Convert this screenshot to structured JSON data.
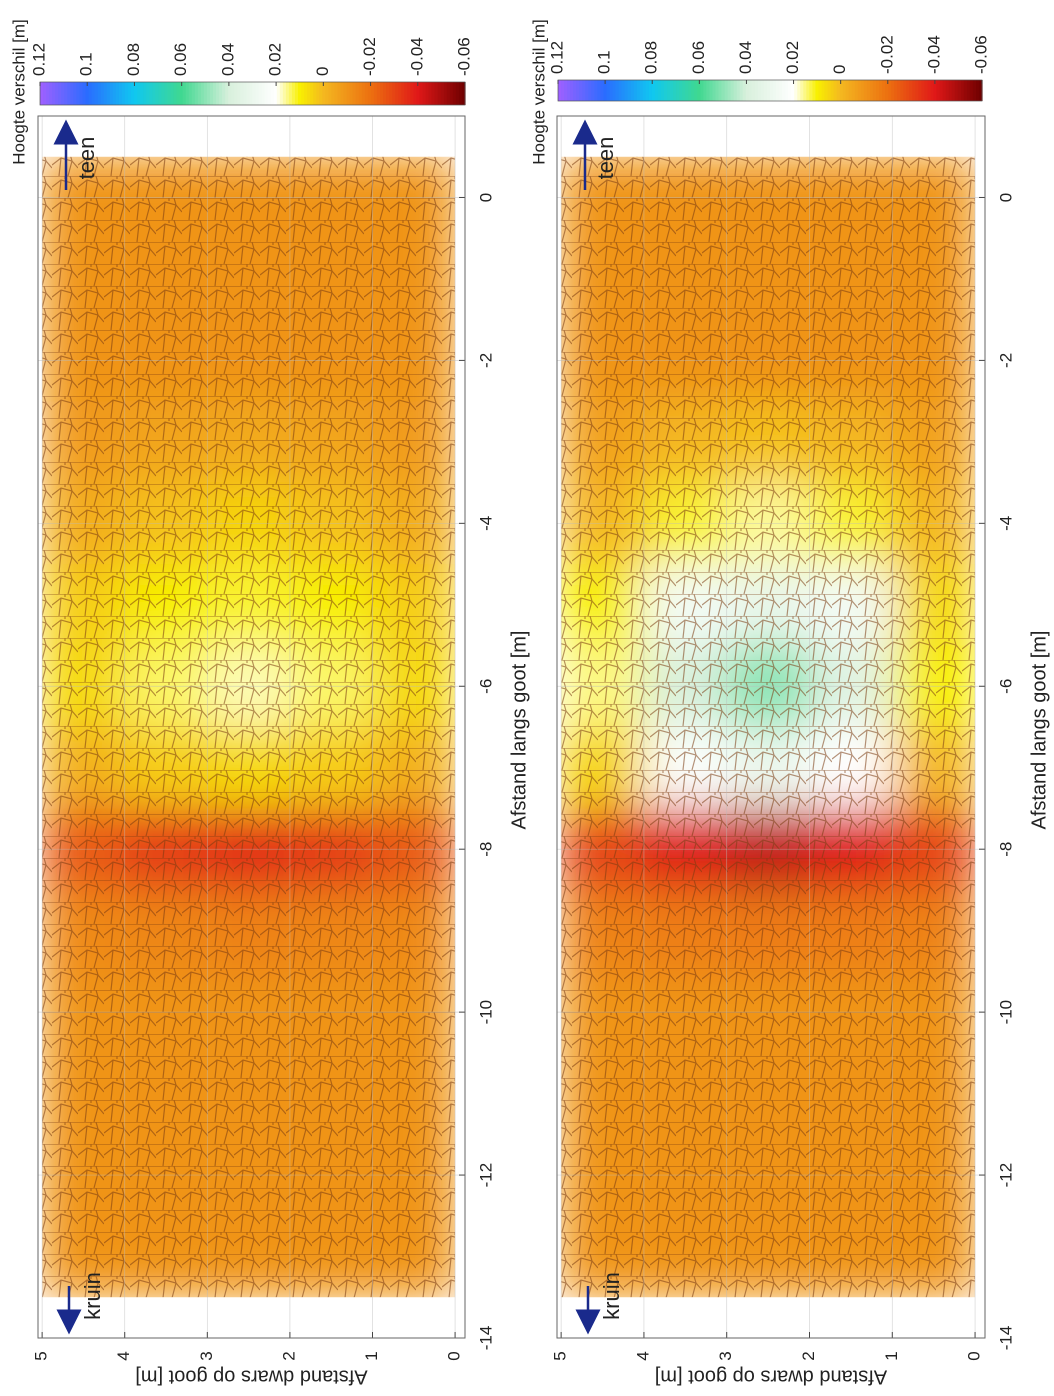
{
  "chart_data": [
    {
      "type": "heatmap",
      "x_label": "Afstand langs goot [m]",
      "y_label": "Afstand dwars op goot [m]",
      "x": [
        0,
        -1,
        -2,
        -3,
        -4,
        -5,
        -6,
        -7,
        -8,
        -9,
        -10,
        -11,
        -12,
        -13
      ],
      "y": [
        0.5,
        1.5,
        2.5,
        3.5,
        4.5
      ],
      "values": [
        [
          -0.01,
          -0.01,
          -0.01,
          -0.01,
          -0.01
        ],
        [
          -0.01,
          -0.01,
          -0.01,
          -0.01,
          -0.01
        ],
        [
          -0.01,
          -0.01,
          -0.01,
          -0.01,
          -0.01
        ],
        [
          -0.008,
          -0.005,
          -0.004,
          -0.005,
          -0.008
        ],
        [
          -0.003,
          0.002,
          0.005,
          0.002,
          -0.003
        ],
        [
          0.004,
          0.01,
          0.012,
          0.01,
          0.004
        ],
        [
          0.006,
          0.014,
          0.017,
          0.014,
          0.006
        ],
        [
          -0.002,
          0.004,
          0.006,
          0.004,
          -0.002
        ],
        [
          -0.025,
          -0.032,
          -0.035,
          -0.032,
          -0.025
        ],
        [
          -0.013,
          -0.014,
          -0.015,
          -0.014,
          -0.013
        ],
        [
          -0.01,
          -0.01,
          -0.01,
          -0.01,
          -0.01
        ],
        [
          -0.01,
          -0.01,
          -0.01,
          -0.01,
          -0.01
        ],
        [
          -0.01,
          -0.01,
          -0.01,
          -0.01,
          -0.01
        ],
        [
          -0.01,
          -0.01,
          -0.01,
          -0.01,
          -0.01
        ]
      ],
      "xlim": [
        1,
        -14
      ],
      "xticks": [
        0,
        -2,
        -4,
        -6,
        -8,
        -10,
        -12,
        -14
      ],
      "ylim": [
        -0.12,
        5.05
      ],
      "yticks": [
        0,
        1,
        2,
        3,
        4,
        5
      ],
      "grid": true,
      "colorbar": {
        "title": "Hoogte verschil [m]",
        "clim": [
          0.12,
          -0.06
        ],
        "ticks": [
          0.12,
          0.1,
          0.08,
          0.06,
          0.04,
          0.02,
          0,
          -0.02,
          -0.04,
          -0.06
        ],
        "colormap": [
          {
            "value": 0.12,
            "color": "#a060ff"
          },
          {
            "value": 0.1,
            "color": "#2a6cff"
          },
          {
            "value": 0.08,
            "color": "#10c8f0"
          },
          {
            "value": 0.06,
            "color": "#40d890"
          },
          {
            "value": 0.04,
            "color": "#d8f0dc"
          },
          {
            "value": 0.02,
            "color": "#ffffff"
          },
          {
            "value": 0.01,
            "color": "#f8f000"
          },
          {
            "value": 0,
            "color": "#f4b820"
          },
          {
            "value": -0.02,
            "color": "#ec7010"
          },
          {
            "value": -0.04,
            "color": "#e01818"
          },
          {
            "value": -0.06,
            "color": "#6e0000"
          }
        ]
      },
      "annotations": [
        "teen",
        "kruin"
      ]
    },
    {
      "type": "heatmap",
      "x_label": "Afstand langs goot [m]",
      "y_label": "Afstand dwars op goot [m]",
      "x": [
        0,
        -1,
        -2,
        -3,
        -4,
        -5,
        -6,
        -7,
        -8,
        -9,
        -10,
        -11,
        -12,
        -13
      ],
      "y": [
        0.5,
        1.5,
        2.5,
        3.5,
        4.5
      ],
      "values": [
        [
          -0.01,
          -0.01,
          -0.01,
          -0.01,
          -0.01
        ],
        [
          -0.01,
          -0.01,
          -0.01,
          -0.01,
          -0.01
        ],
        [
          -0.01,
          -0.01,
          -0.01,
          -0.01,
          -0.01
        ],
        [
          -0.006,
          0,
          0.002,
          0,
          -0.006
        ],
        [
          0,
          0.012,
          0.016,
          0.012,
          0
        ],
        [
          0.006,
          0.026,
          0.032,
          0.026,
          0.01
        ],
        [
          0.01,
          0.036,
          0.05,
          0.04,
          0.015
        ],
        [
          0,
          0.02,
          0.03,
          0.022,
          0.005
        ],
        [
          -0.03,
          -0.04,
          -0.045,
          -0.04,
          -0.03
        ],
        [
          -0.015,
          -0.016,
          -0.017,
          -0.016,
          -0.015
        ],
        [
          -0.01,
          -0.01,
          -0.01,
          -0.01,
          -0.01
        ],
        [
          -0.01,
          -0.01,
          -0.01,
          -0.01,
          -0.01
        ],
        [
          -0.01,
          -0.01,
          -0.01,
          -0.01,
          -0.01
        ],
        [
          -0.01,
          -0.01,
          -0.01,
          -0.01,
          -0.01
        ]
      ],
      "xlim": [
        1,
        -14
      ],
      "xticks": [
        0,
        -2,
        -4,
        -6,
        -8,
        -10,
        -12,
        -14
      ],
      "ylim": [
        -0.12,
        5.05
      ],
      "yticks": [
        0,
        1,
        2,
        3,
        4,
        5
      ],
      "grid": true,
      "colorbar": {
        "title": "Hoogte verschil [m]",
        "clim": [
          0.12,
          -0.06
        ],
        "ticks": [
          0.12,
          0.1,
          0.08,
          0.06,
          0.04,
          0.02,
          0,
          -0.02,
          -0.04,
          -0.06
        ],
        "colormap": [
          {
            "value": 0.12,
            "color": "#a060ff"
          },
          {
            "value": 0.1,
            "color": "#2a6cff"
          },
          {
            "value": 0.08,
            "color": "#10c8f0"
          },
          {
            "value": 0.06,
            "color": "#40d890"
          },
          {
            "value": 0.04,
            "color": "#d8f0dc"
          },
          {
            "value": 0.02,
            "color": "#ffffff"
          },
          {
            "value": 0.01,
            "color": "#f8f000"
          },
          {
            "value": 0,
            "color": "#f4b820"
          },
          {
            "value": -0.02,
            "color": "#ec7010"
          },
          {
            "value": -0.04,
            "color": "#e01818"
          },
          {
            "value": -0.06,
            "color": "#6e0000"
          }
        ]
      },
      "annotations": [
        "teen",
        "kruin"
      ]
    }
  ]
}
